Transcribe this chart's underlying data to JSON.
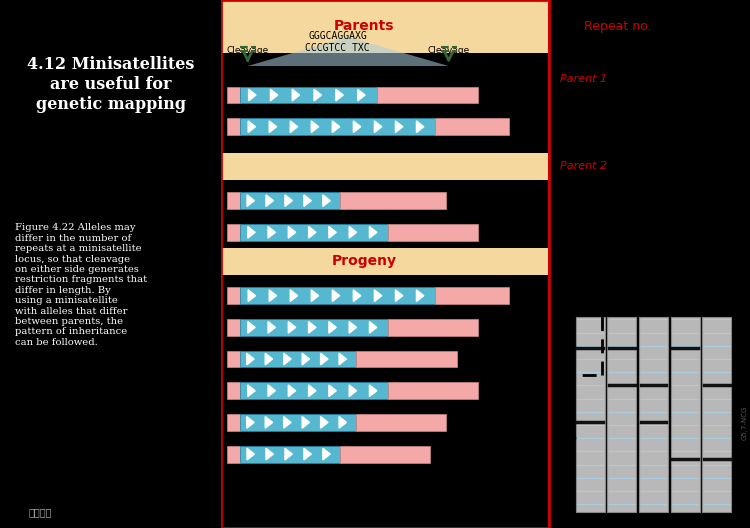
{
  "title_left": "4.12 Minisatellites\nare useful for\ngenetic mapping",
  "caption": "Figure 4.22 Alleles may\ndiffer in the number of\nrepeats at a minisatellite\nlocus, so that cleavage\non either side generates\nrestriction fragments that\ndiffer in length. By\nusing a minisatellite\nwith alleles that differ\nbetween parents, the\npattern of inheritance\ncan be followed.",
  "bg_left": "#000000",
  "panel_bg": "#cce8f4",
  "header_bg": "#f5d89e",
  "header_text_color": "#cc0000",
  "title_color": "#ffffff",
  "caption_color": "#ffffff",
  "dna_seq": "GGGCAGGAXG\nCCCGTCC TXC",
  "parents_label": "Parents",
  "progeny_label": "Progeny",
  "repeat_no_label": "Repeat no.",
  "parent1_label": "Parent 1",
  "parent2_label": "Parent 2",
  "cleavage_label": "Cleavage",
  "bar_pink": "#f4a8a8",
  "bar_cyan": "#55b8d0",
  "arrow_green": "#336633",
  "gel_bar_color": "#b8b8b8",
  "gel_line_dark": "#111111",
  "gel_line_light": "#aaccdd",
  "border_red": "#cc0000",
  "dashed_black": "#000000"
}
